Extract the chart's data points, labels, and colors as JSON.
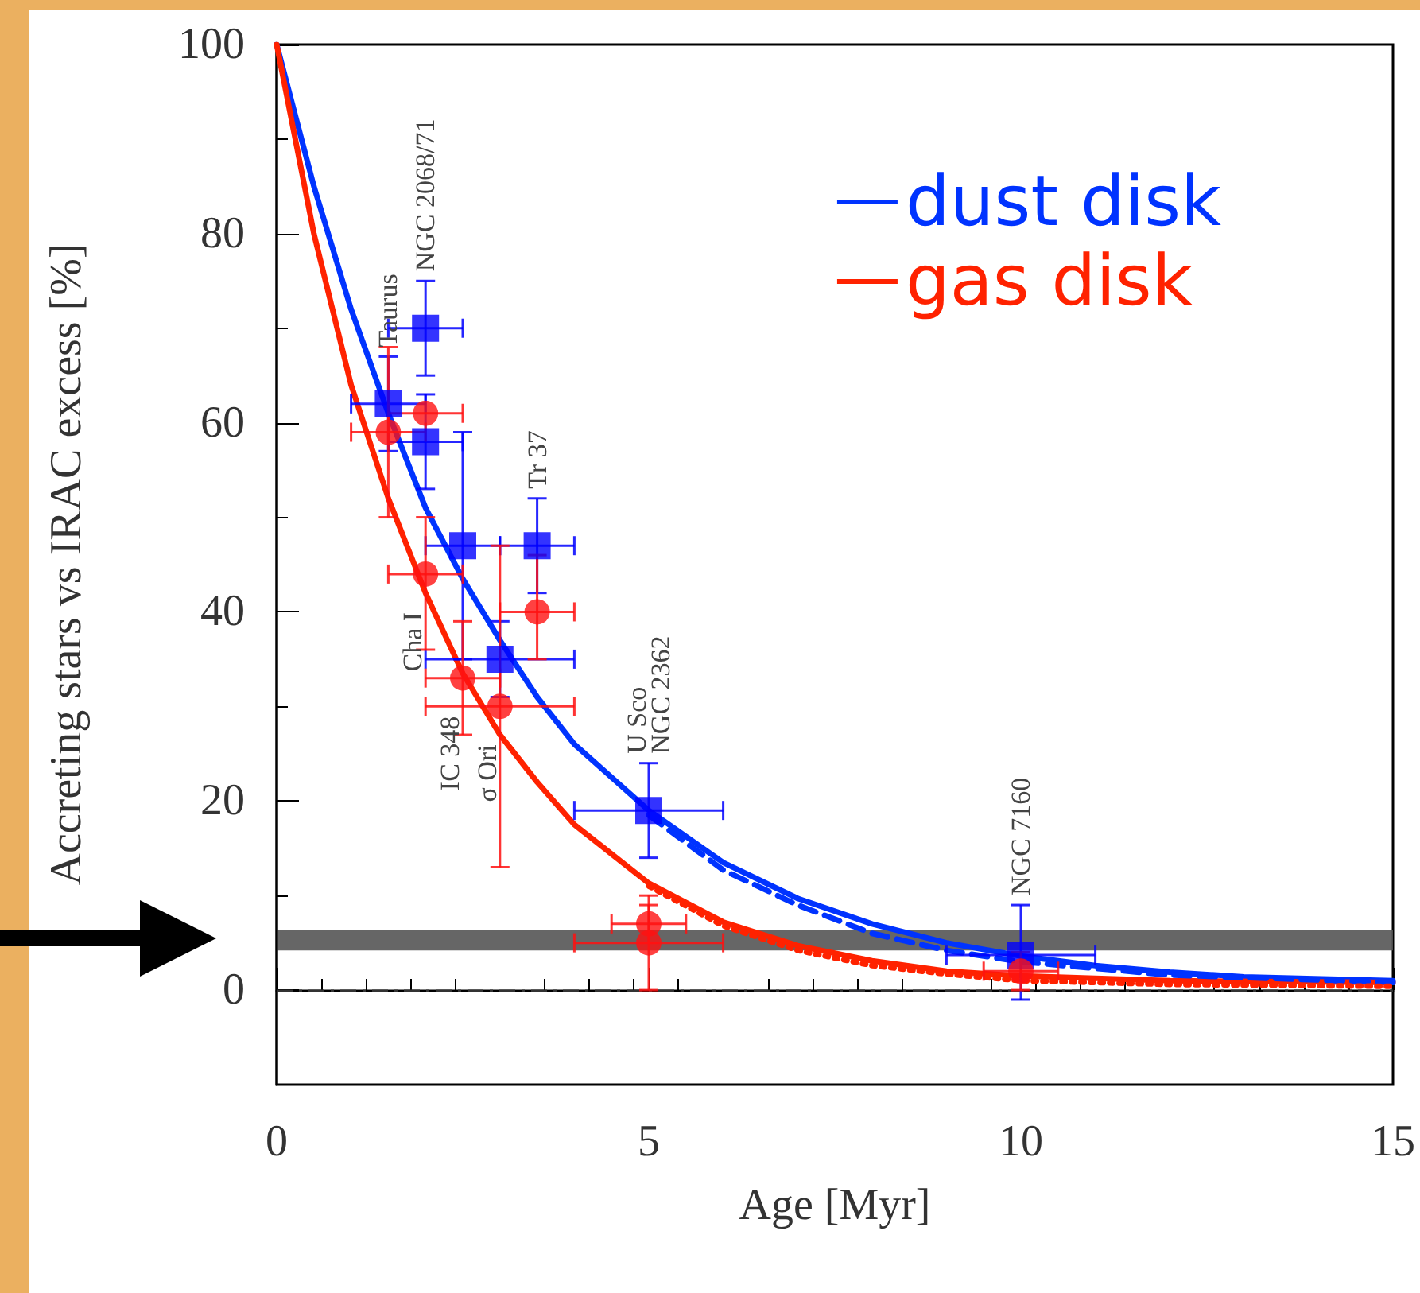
{
  "chart_data": {
    "type": "scatter",
    "xlabel": "Age [Myr]",
    "ylabel": "Accreting stars vs IRAC excess [%]",
    "xlim": [
      0,
      15
    ],
    "xticks": [
      0,
      5,
      10,
      15
    ],
    "ylim": [
      -10,
      100
    ],
    "yticks": [
      0,
      20,
      40,
      60,
      80,
      100
    ],
    "grid": false,
    "legend": "top right",
    "series": [
      {
        "type": "line",
        "name": "dust disk",
        "color": "#0033ff",
        "marker": "none",
        "line_style": "solid",
        "x": [
          0,
          0.5,
          1,
          1.5,
          2,
          2.5,
          3,
          3.5,
          4,
          5,
          6,
          7,
          8,
          9,
          10,
          11,
          12,
          13,
          15
        ],
        "values": [
          100,
          85,
          72,
          61,
          51,
          43.5,
          37,
          31,
          26,
          19,
          13.5,
          9.7,
          7,
          5,
          3.6,
          2.6,
          1.9,
          1.4,
          1
        ]
      },
      {
        "type": "line",
        "name": "gas disk",
        "color": "#ff2200",
        "marker": "none",
        "line_style": "solid",
        "x": [
          0,
          0.5,
          1,
          1.5,
          2,
          2.5,
          3,
          3.5,
          4,
          5,
          6,
          7,
          8,
          9,
          10,
          12,
          15
        ],
        "values": [
          100,
          80,
          64,
          52,
          42,
          33.5,
          27,
          22,
          17.5,
          11.3,
          7.2,
          4.7,
          3.1,
          2,
          1.5,
          1,
          0.8
        ]
      },
      {
        "type": "line",
        "color": "#0033ff",
        "marker": "none",
        "line_style": "dashed",
        "x": [
          5,
          6,
          7,
          8,
          9,
          10,
          12,
          15
        ],
        "values": [
          18.5,
          12.7,
          9,
          6,
          4.2,
          3,
          1.6,
          0.8
        ]
      },
      {
        "type": "line",
        "color": "#ff2200",
        "marker": "none",
        "line_style": "dotted",
        "x": [
          5,
          6,
          7,
          8,
          9,
          10,
          12,
          15
        ],
        "values": [
          11,
          6.8,
          4.2,
          2.6,
          1.7,
          1,
          0.6,
          0.4
        ]
      },
      {
        "type": "scatter",
        "color": "#0000ff",
        "marker": "square",
        "x": [
          1.5,
          2,
          2,
          2.5,
          3.5,
          3,
          5,
          10
        ],
        "values": [
          62,
          70,
          58,
          47,
          47,
          35,
          19,
          3.7
        ],
        "errors": [
          [
            57,
            67
          ],
          5,
          5,
          [
            35,
            59
          ],
          5,
          4,
          5,
          [
            -1,
            9
          ]
        ],
        "xerrors": [
          [
            1,
            2
          ],
          0.5,
          0.5,
          0.5,
          0.5,
          1,
          1,
          1
        ]
      },
      {
        "type": "scatter",
        "color": "#ff1111",
        "marker": "circle",
        "x": [
          1.5,
          2,
          2,
          2.5,
          3,
          3.5,
          5,
          5,
          10
        ],
        "values": [
          59,
          61,
          44,
          33,
          30,
          40,
          7,
          5,
          2
        ],
        "errors": [
          [
            50,
            68
          ],
          null,
          [
            36,
            50
          ],
          6,
          [
            13,
            47
          ],
          [
            35,
            46
          ],
          2,
          [
            0,
            10
          ],
          2
        ],
        "xerrors": [
          0.5,
          0.5,
          0.5,
          0.5,
          1,
          0.5,
          0.5,
          1,
          0.5
        ]
      }
    ],
    "ref_lines": [
      {
        "axis": "y",
        "value": 0,
        "color": "#333333",
        "line_style": "dashdot"
      }
    ],
    "bands": [
      {
        "axis": "y",
        "from": 4.2,
        "to": 6.4,
        "color": "#555555"
      }
    ],
    "annotations": [
      {
        "text": "Taurus",
        "x": 1.5,
        "y": 62
      },
      {
        "text": "NGC 2068/71",
        "x": 2,
        "y": 70
      },
      {
        "text": "Tr 37",
        "x": 3.5,
        "y": 47
      },
      {
        "text": "Cha I",
        "x": 2,
        "y": 44
      },
      {
        "text": "IC 348",
        "x": 2.5,
        "y": 33
      },
      {
        "text": "σ Ori",
        "x": 3,
        "y": 30
      },
      {
        "text": "U Sco",
        "x": 5,
        "y": 19
      },
      {
        "text": "NGC 2362",
        "x": 5,
        "y": 19
      },
      {
        "text": "NGC 7160",
        "x": 10,
        "y": 3.7
      }
    ]
  }
}
